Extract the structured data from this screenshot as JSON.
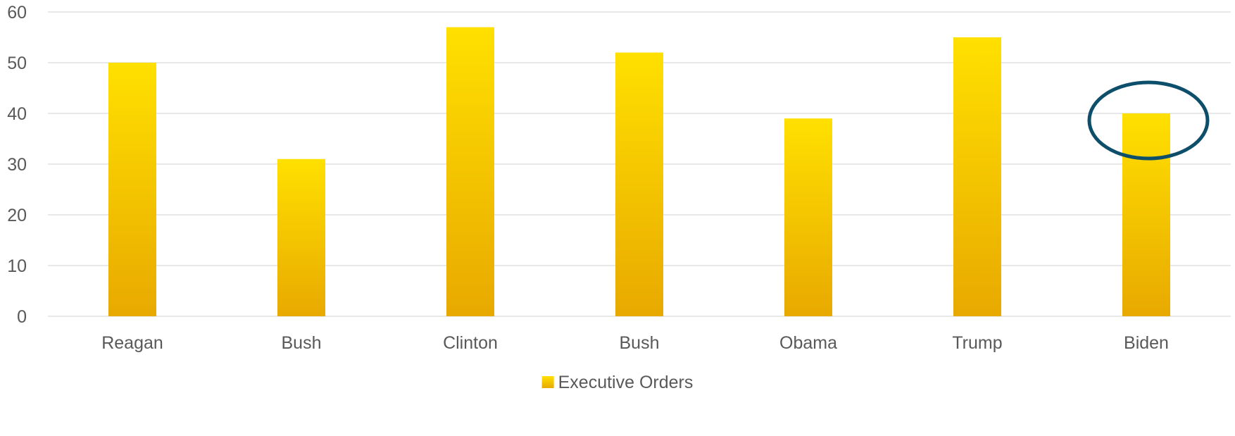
{
  "chart_data": {
    "type": "bar",
    "categories": [
      "Reagan",
      "Bush",
      "Clinton",
      "Bush",
      "Obama",
      "Trump",
      "Biden"
    ],
    "series": [
      {
        "name": "Executive Orders",
        "values": [
          50,
          31,
          57,
          52,
          39,
          55,
          40
        ]
      }
    ],
    "title": "",
    "xlabel": "",
    "ylabel": "",
    "ylim": [
      0,
      60
    ],
    "yticks": [
      0,
      10,
      20,
      30,
      40,
      50,
      60
    ],
    "grid": true,
    "legend": "bottom-center",
    "annotations": [
      {
        "type": "ellipse-highlight",
        "category": "Biden",
        "color": "#0d4f6b"
      }
    ]
  },
  "colors": {
    "bar_top": "#ffe000",
    "bar_bottom": "#e8a900",
    "highlight": "#0d4f6b",
    "text": "#595959",
    "grid": "#d9d9d9"
  }
}
